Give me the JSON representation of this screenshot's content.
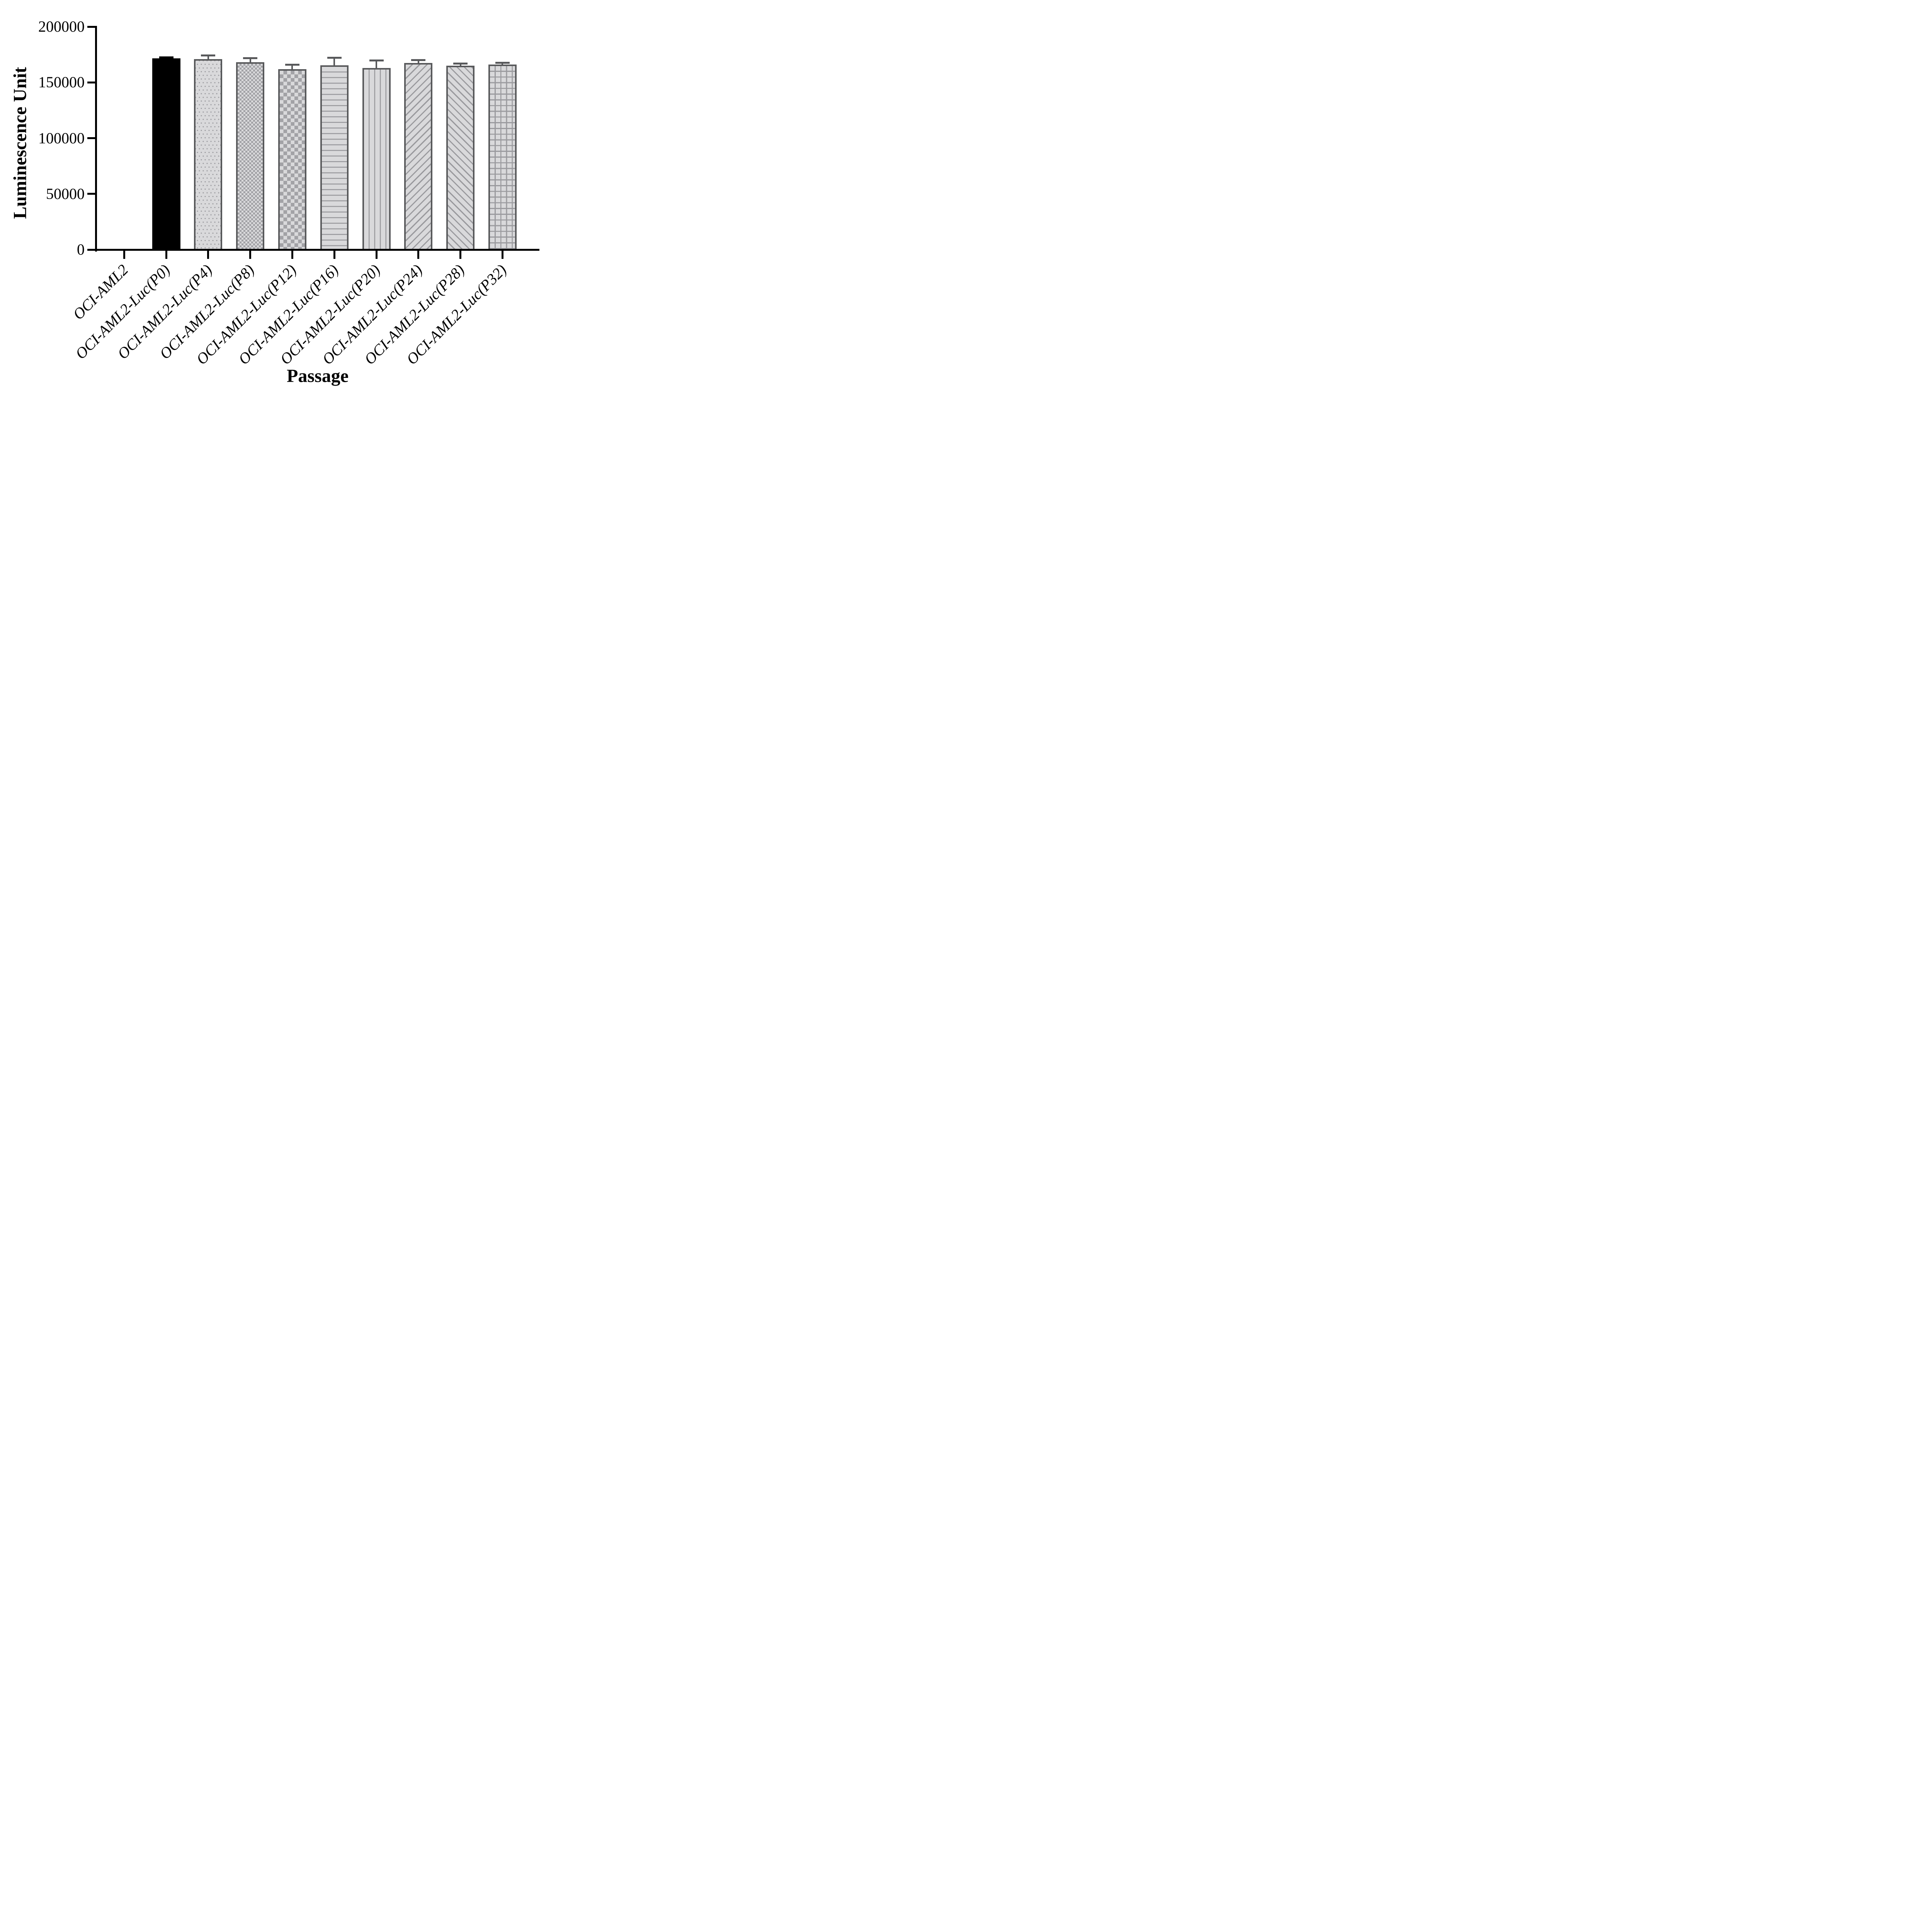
{
  "chart_data": {
    "type": "bar",
    "title": "",
    "xlabel": "Passage",
    "ylabel": "Luminescence Unit",
    "ylim": [
      0,
      200000
    ],
    "y_ticks": [
      0,
      50000,
      100000,
      150000,
      200000
    ],
    "y_tick_labels": [
      "0",
      "50000",
      "100000",
      "150000",
      "200000"
    ],
    "categories": [
      "OCI-AML2",
      "OCI-AML2-Luc(P0)",
      "OCI-AML2-Luc(P4)",
      "OCI-AML2-Luc(P8)",
      "OCI-AML2-Luc(P12)",
      "OCI-AML2-Luc(P16)",
      "OCI-AML2-Luc(P20)",
      "OCI-AML2-Luc(P24)",
      "OCI-AML2-Luc(P28)",
      "OCI-AML2-Luc(P32)"
    ],
    "values": [
      0,
      171500,
      171000,
      168000,
      162000,
      165500,
      163000,
      167500,
      165000,
      166000
    ],
    "errors": [
      0,
      900,
      3100,
      3600,
      3900,
      6500,
      6800,
      2600,
      1900,
      1500
    ],
    "error_direction": "plus-only",
    "patterns": [
      "none",
      "solid",
      "dots",
      "checker-fine",
      "checker-coarse",
      "h-lines",
      "v-lines",
      "diag-up",
      "diag-down",
      "grid"
    ],
    "grid": false,
    "legend_position": "none",
    "colors": {
      "solid_bar": "#000000",
      "bar_fill": "#d9d9db",
      "bar_border": "#58595b",
      "pattern_line": "#9a9a9e",
      "error_bar": "#58595b",
      "axis": "#000000",
      "background": "#ffffff"
    }
  }
}
